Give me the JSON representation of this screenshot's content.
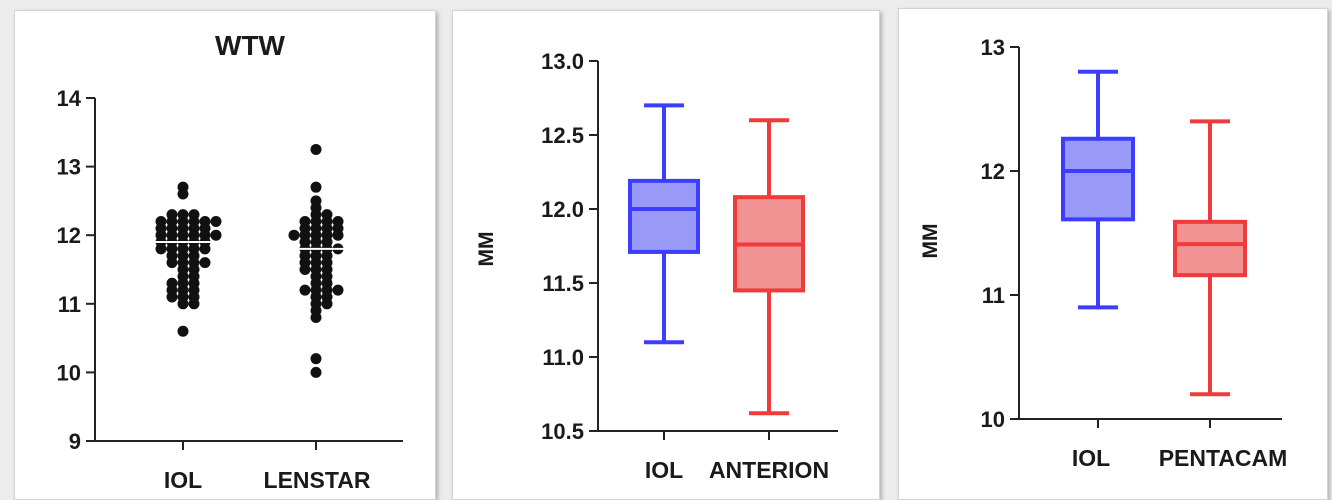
{
  "chart_data": [
    {
      "type": "scatter",
      "title": "WTW",
      "ylabel": "",
      "ylim": [
        9,
        14
      ],
      "yticks": [
        "9",
        "10",
        "11",
        "12",
        "13",
        "14"
      ],
      "categories": [
        "IOL",
        "LENSTAR"
      ],
      "series": [
        {
          "category": "IOL",
          "mean": 11.9,
          "values": [
            12.7,
            12.6,
            12.3,
            12.3,
            12.3,
            12.2,
            12.2,
            12.2,
            12.2,
            12.2,
            12.2,
            12.1,
            12.1,
            12.1,
            12.1,
            12.1,
            12.0,
            12.0,
            12.0,
            12.0,
            12.0,
            12.0,
            11.9,
            11.9,
            11.9,
            11.9,
            11.9,
            11.8,
            11.8,
            11.8,
            11.8,
            11.8,
            11.7,
            11.7,
            11.7,
            11.6,
            11.6,
            11.6,
            11.6,
            11.5,
            11.5,
            11.4,
            11.4,
            11.3,
            11.3,
            11.3,
            11.2,
            11.2,
            11.2,
            11.1,
            11.1,
            11.1,
            11.0,
            11.0,
            10.6
          ]
        },
        {
          "category": "LENSTAR",
          "mean": 11.8,
          "values": [
            13.25,
            12.7,
            12.5,
            12.4,
            12.3,
            12.3,
            12.2,
            12.2,
            12.2,
            12.2,
            12.1,
            12.1,
            12.1,
            12.1,
            12.0,
            12.0,
            12.0,
            12.0,
            12.0,
            11.9,
            11.9,
            11.9,
            11.8,
            11.8,
            11.8,
            11.8,
            11.7,
            11.7,
            11.7,
            11.6,
            11.6,
            11.6,
            11.5,
            11.5,
            11.5,
            11.4,
            11.4,
            11.3,
            11.3,
            11.2,
            11.2,
            11.2,
            11.2,
            11.1,
            11.1,
            11.0,
            11.0,
            10.9,
            10.8,
            10.2,
            10.0
          ]
        }
      ]
    },
    {
      "type": "box",
      "title": "",
      "ylabel": "MM",
      "ylim": [
        10.5,
        13.0
      ],
      "yticks": [
        "10.5",
        "11.0",
        "11.5",
        "12.0",
        "12.5",
        "13.0"
      ],
      "categories": [
        "IOL",
        "ANTERION"
      ],
      "series": [
        {
          "category": "IOL",
          "color": "#3d3dff",
          "fill": "#9999f8",
          "min": 11.1,
          "q1": 11.71,
          "median": 12.0,
          "q3": 12.19,
          "max": 12.7
        },
        {
          "category": "ANTERION",
          "color": "#ef3b3b",
          "fill": "#f29393",
          "min": 10.62,
          "q1": 11.45,
          "median": 11.76,
          "q3": 12.08,
          "max": 12.6
        }
      ]
    },
    {
      "type": "box",
      "title": "",
      "ylabel": "MM",
      "ylim": [
        10,
        13
      ],
      "yticks": [
        "10",
        "11",
        "12",
        "13"
      ],
      "categories": [
        "IOL",
        "PENTACAM"
      ],
      "series": [
        {
          "category": "IOL",
          "color": "#3d3dff",
          "fill": "#9999f8",
          "min": 10.9,
          "q1": 11.61,
          "median": 12.0,
          "q3": 12.26,
          "max": 12.8
        },
        {
          "category": "PENTACAM",
          "color": "#ef3b3b",
          "fill": "#f29393",
          "min": 10.2,
          "q1": 11.16,
          "median": 11.41,
          "q3": 11.59,
          "max": 12.4
        }
      ]
    }
  ]
}
